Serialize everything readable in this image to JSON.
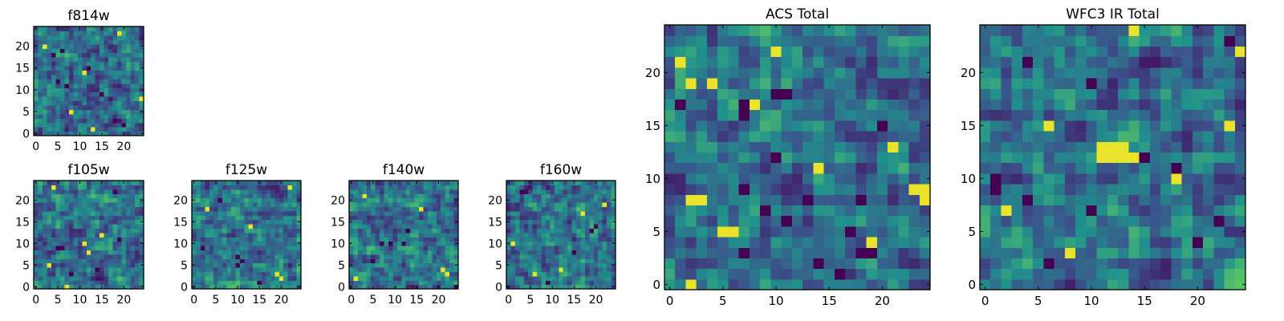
{
  "figure": {
    "colormap": [
      "#440154",
      "#3b528b",
      "#21918c",
      "#5ec962",
      "#fde725"
    ],
    "border_color": "#000000"
  },
  "chart_data": [
    {
      "type": "heatmap",
      "title": "f814w",
      "grid": [
        25,
        25
      ],
      "xticks": [
        0,
        5,
        10,
        15,
        20
      ],
      "yticks": [
        0,
        5,
        10,
        15,
        20
      ],
      "xlim": [
        -0.5,
        24.5
      ],
      "ylim": [
        -0.5,
        24.5
      ],
      "dark_cells": [
        [
          6,
          19
        ],
        [
          4,
          18
        ],
        [
          12,
          15
        ],
        [
          7,
          11
        ],
        [
          18,
          3
        ],
        [
          20,
          2
        ],
        [
          5,
          12
        ],
        [
          15,
          9
        ]
      ],
      "bright_cells": [
        [
          19,
          23
        ],
        [
          2,
          20
        ],
        [
          24,
          8
        ],
        [
          11,
          14
        ],
        [
          8,
          5
        ],
        [
          13,
          1
        ]
      ],
      "value_range": [
        0,
        1
      ],
      "seed": 814
    },
    {
      "type": "heatmap",
      "title": "f105w",
      "grid": [
        25,
        25
      ],
      "xticks": [
        0,
        5,
        10,
        15,
        20
      ],
      "yticks": [
        0,
        5,
        10,
        15,
        20
      ],
      "xlim": [
        -0.5,
        24.5
      ],
      "ylim": [
        -0.5,
        24.5
      ],
      "dark_cells": [
        [
          5,
          9
        ],
        [
          6,
          9
        ],
        [
          14,
          4
        ],
        [
          18,
          22
        ],
        [
          19,
          11
        ],
        [
          8,
          3
        ]
      ],
      "bright_cells": [
        [
          11,
          10
        ],
        [
          12,
          8
        ],
        [
          3,
          5
        ],
        [
          15,
          12
        ],
        [
          7,
          0
        ],
        [
          4,
          23
        ]
      ],
      "value_range": [
        0,
        1
      ],
      "seed": 105
    },
    {
      "type": "heatmap",
      "title": "f125w",
      "grid": [
        25,
        25
      ],
      "xticks": [
        0,
        5,
        10,
        15,
        20
      ],
      "yticks": [
        0,
        5,
        10,
        15,
        20
      ],
      "xlim": [
        -0.5,
        24.5
      ],
      "ylim": [
        -0.5,
        24.5
      ],
      "dark_cells": [
        [
          6,
          20
        ],
        [
          10,
          7
        ],
        [
          11,
          6
        ],
        [
          10,
          5
        ],
        [
          2,
          9
        ],
        [
          15,
          1
        ]
      ],
      "bright_cells": [
        [
          3,
          18
        ],
        [
          19,
          3
        ],
        [
          20,
          2
        ],
        [
          22,
          23
        ],
        [
          13,
          14
        ]
      ],
      "value_range": [
        0,
        1
      ],
      "seed": 125
    },
    {
      "type": "heatmap",
      "title": "f140w",
      "grid": [
        25,
        25
      ],
      "xticks": [
        0,
        5,
        10,
        15,
        20
      ],
      "yticks": [
        0,
        5,
        10,
        15,
        20
      ],
      "xlim": [
        -0.5,
        24.5
      ],
      "ylim": [
        -0.5,
        24.5
      ],
      "dark_cells": [
        [
          7,
          10
        ],
        [
          9,
          10
        ],
        [
          12,
          10
        ],
        [
          24,
          0
        ],
        [
          13,
          13
        ],
        [
          5,
          6
        ]
      ],
      "bright_cells": [
        [
          21,
          4
        ],
        [
          22,
          3
        ],
        [
          3,
          21
        ],
        [
          16,
          18
        ],
        [
          1,
          2
        ]
      ],
      "value_range": [
        0,
        1
      ],
      "seed": 140
    },
    {
      "type": "heatmap",
      "title": "f160w",
      "grid": [
        25,
        25
      ],
      "xticks": [
        0,
        5,
        10,
        15,
        20
      ],
      "yticks": [
        0,
        5,
        10,
        15,
        20
      ],
      "xlim": [
        -0.5,
        24.5
      ],
      "ylim": [
        -0.5,
        24.5
      ],
      "dark_cells": [
        [
          3,
          22
        ],
        [
          4,
          22
        ],
        [
          20,
          14
        ],
        [
          19,
          13
        ],
        [
          9,
          1
        ],
        [
          15,
          8
        ]
      ],
      "bright_cells": [
        [
          1,
          10
        ],
        [
          12,
          4
        ],
        [
          22,
          19
        ],
        [
          6,
          3
        ],
        [
          17,
          17
        ]
      ],
      "value_range": [
        0,
        1
      ],
      "seed": 160
    },
    {
      "type": "heatmap",
      "title": "ACS Total",
      "grid": [
        25,
        25
      ],
      "xticks": [
        0,
        5,
        10,
        15,
        20
      ],
      "yticks": [
        0,
        5,
        10,
        15,
        20
      ],
      "xlim": [
        -0.5,
        24.5
      ],
      "ylim": [
        -0.5,
        24.5
      ],
      "dark_cells": [
        [
          1,
          17
        ],
        [
          7,
          17
        ],
        [
          7,
          16
        ],
        [
          10,
          18
        ],
        [
          11,
          18
        ],
        [
          10,
          12
        ],
        [
          7,
          9
        ],
        [
          13,
          8
        ],
        [
          18,
          8
        ],
        [
          9,
          7
        ],
        [
          7,
          3
        ],
        [
          18,
          3
        ],
        [
          19,
          3
        ],
        [
          16,
          1
        ],
        [
          17,
          5
        ],
        [
          11,
          6
        ],
        [
          14,
          2
        ],
        [
          20,
          15
        ]
      ],
      "bright_cells": [
        [
          2,
          19
        ],
        [
          4,
          19
        ],
        [
          1,
          21
        ],
        [
          2,
          8
        ],
        [
          3,
          8
        ],
        [
          5,
          5
        ],
        [
          6,
          5
        ],
        [
          19,
          4
        ],
        [
          23,
          9
        ],
        [
          24,
          9
        ],
        [
          24,
          8
        ],
        [
          8,
          17
        ],
        [
          10,
          22
        ],
        [
          14,
          11
        ],
        [
          2,
          0
        ],
        [
          21,
          13
        ]
      ],
      "value_range": [
        0,
        1
      ],
      "seed": 700
    },
    {
      "type": "heatmap",
      "title": "WFC3 IR Total",
      "grid": [
        25,
        25
      ],
      "xticks": [
        0,
        5,
        10,
        15,
        20
      ],
      "yticks": [
        0,
        5,
        10,
        15,
        20
      ],
      "xlim": [
        -0.5,
        24.5
      ],
      "ylim": [
        -0.5,
        24.5
      ],
      "dark_cells": [
        [
          23,
          23
        ],
        [
          4,
          21
        ],
        [
          1,
          10
        ],
        [
          1,
          9
        ],
        [
          4,
          8
        ],
        [
          10,
          7
        ],
        [
          15,
          12
        ],
        [
          18,
          11
        ],
        [
          22,
          6
        ],
        [
          6,
          2
        ],
        [
          10,
          19
        ],
        [
          20,
          4
        ]
      ],
      "bright_cells": [
        [
          14,
          24
        ],
        [
          11,
          13
        ],
        [
          12,
          13
        ],
        [
          13,
          13
        ],
        [
          13,
          12
        ],
        [
          14,
          12
        ],
        [
          12,
          12
        ],
        [
          11,
          12
        ],
        [
          23,
          15
        ],
        [
          2,
          7
        ],
        [
          6,
          15
        ],
        [
          24,
          22
        ],
        [
          18,
          10
        ],
        [
          8,
          3
        ]
      ],
      "value_range": [
        0,
        1
      ],
      "seed": 900
    }
  ]
}
